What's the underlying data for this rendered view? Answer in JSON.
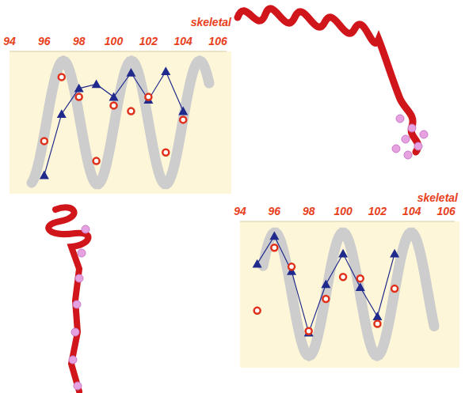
{
  "chart_data": [
    {
      "type": "line",
      "xlabel": "skeletal",
      "x": [
        96,
        97,
        98,
        99,
        100,
        101,
        102,
        103,
        104
      ],
      "series": [
        {
          "color": "#1f2a8c",
          "marker": "triangle",
          "line_style": "solid",
          "values": [
            1.3,
            5.6,
            7.4,
            7.7,
            6.8,
            8.5,
            6.6,
            8.6,
            5.8
          ]
        },
        {
          "color": "#e0301a",
          "marker": "circle",
          "line_style": "none",
          "values": [
            3.7,
            8.2,
            6.8,
            2.3,
            6.2,
            5.8,
            6.8,
            2.9,
            5.2
          ]
        }
      ],
      "xlim": [
        94,
        106.5
      ],
      "xticks": [
        94,
        96,
        98,
        100,
        102,
        104,
        106
      ],
      "ylim": [
        0,
        10
      ],
      "tick_labels": "x"
    },
    {
      "type": "line",
      "xlabel": "skeletal",
      "x": [
        95,
        96,
        97,
        98,
        99,
        100,
        101,
        102,
        103
      ],
      "series": [
        {
          "color": "#1f2a8c",
          "marker": "triangle",
          "line_style": "solid",
          "values": [
            7.1,
            9.0,
            6.6,
            2.4,
            5.7,
            7.8,
            5.5,
            3.5,
            7.8
          ]
        },
        {
          "color": "#e0301a",
          "marker": "circle",
          "line_style": "none",
          "values": [
            3.9,
            8.2,
            6.9,
            2.5,
            4.7,
            6.2,
            6.1,
            3.0,
            5.4
          ]
        }
      ],
      "xlim": [
        94,
        106.5
      ],
      "xticks": [
        94,
        96,
        98,
        100,
        102,
        104,
        106
      ],
      "ylim": [
        0,
        10
      ],
      "tick_labels": "x"
    }
  ]
}
